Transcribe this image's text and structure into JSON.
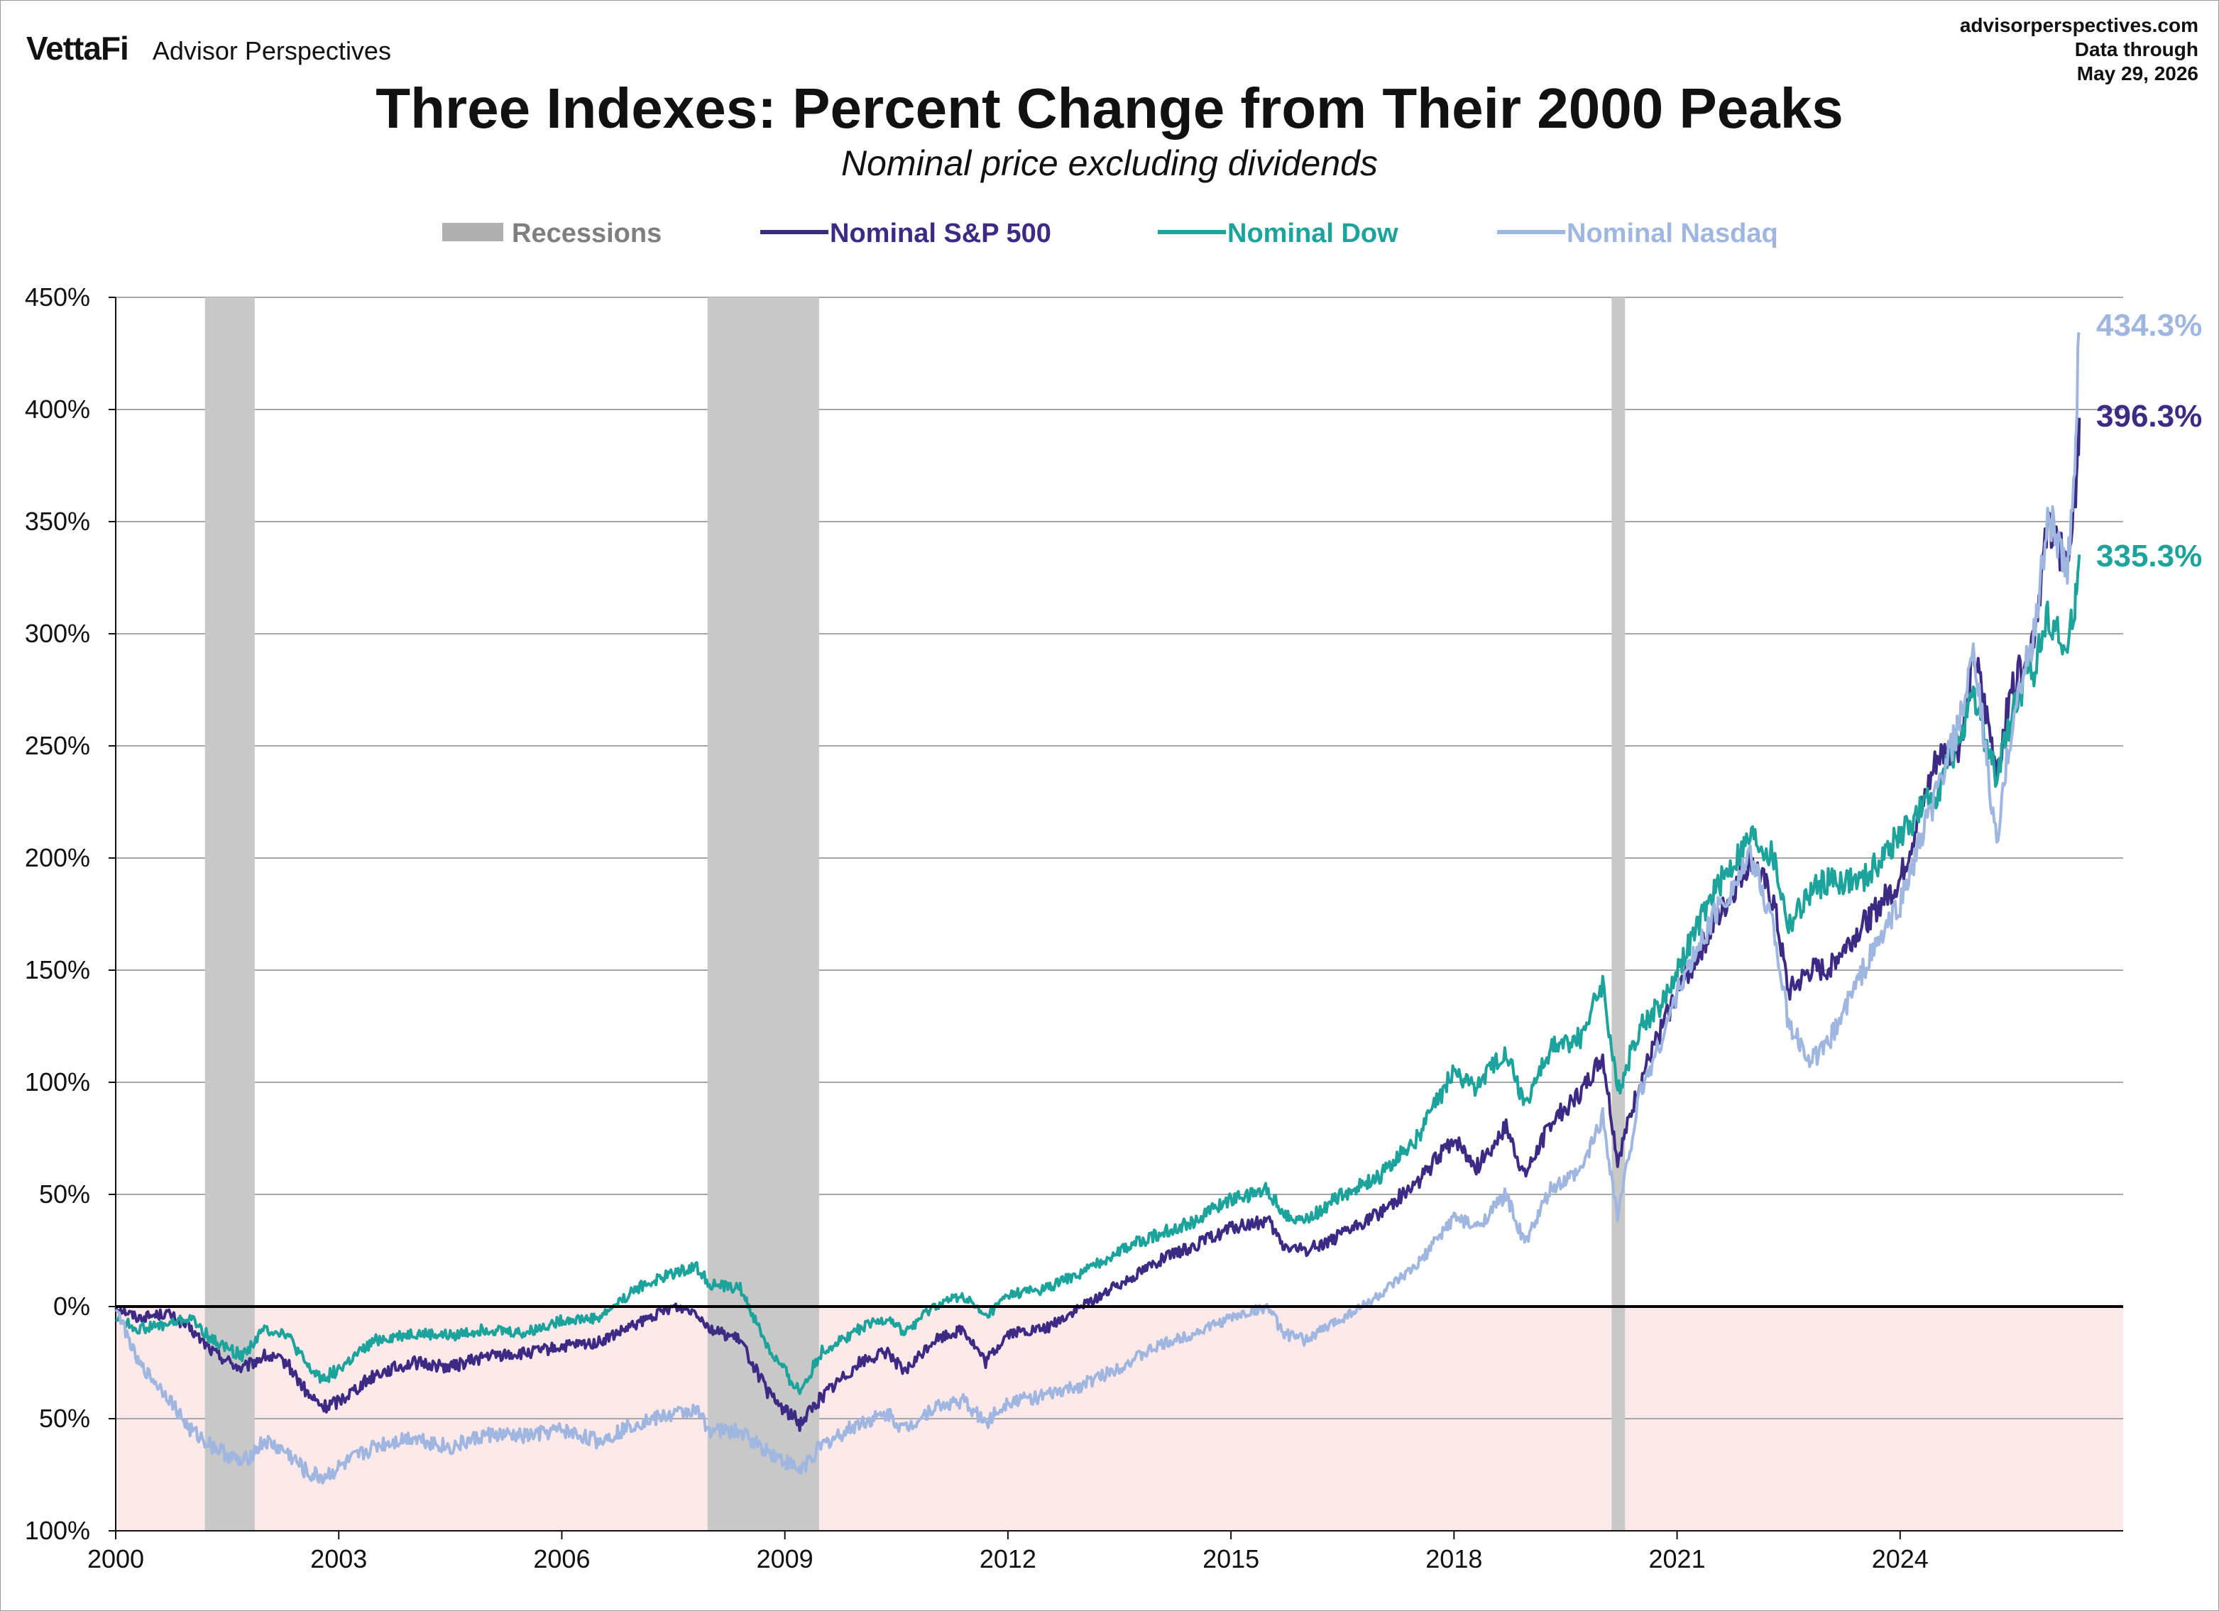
{
  "header": {
    "brand_logo": "VettaFi",
    "brand_name": "Advisor Perspectives",
    "source_site": "advisorperspectives.com",
    "source_note": "Data through",
    "source_date": "May 29, 2026"
  },
  "chart_data": {
    "type": "line",
    "title": "Three Indexes: Percent Change from Their 2000 Peaks",
    "subtitle": "Nominal price excluding dividends",
    "xlabel": "",
    "ylabel": "",
    "xlim": [
      2000.0,
      2027.0
    ],
    "ylim": [
      -100,
      450
    ],
    "x_ticks": [
      2000,
      2003,
      2006,
      2009,
      2012,
      2015,
      2018,
      2021,
      2024
    ],
    "x_tick_labels": [
      "2000",
      "2003",
      "2006",
      "2009",
      "2012",
      "2015",
      "2018",
      "2021",
      "2024"
    ],
    "y_ticks": [
      -100,
      -50,
      0,
      50,
      100,
      150,
      200,
      250,
      300,
      350,
      400,
      450
    ],
    "y_tick_labels": [
      "100%",
      "50%",
      "0%",
      "50%",
      "100%",
      "150%",
      "200%",
      "250%",
      "300%",
      "350%",
      "400%",
      "450%"
    ],
    "negative_tick_color": "#e8151b",
    "grid": true,
    "negative_region_color": "#fde9ea",
    "legend_position": "top",
    "recession_periods": [
      [
        2001.2,
        2001.87
      ],
      [
        2007.96,
        2009.46
      ],
      [
        2020.12,
        2020.3
      ]
    ],
    "recession_color": "#c8c8c8",
    "legend": [
      {
        "label": "Recessions",
        "color": "#b0b0b0",
        "kind": "band"
      },
      {
        "label": "Nominal S&P 500",
        "color": "#3d2a85",
        "kind": "line"
      },
      {
        "label": "Nominal Dow",
        "color": "#1ba39c",
        "kind": "line"
      },
      {
        "label": "Nominal Nasdaq",
        "color": "#9fb6e0",
        "kind": "line"
      }
    ],
    "series": [
      {
        "name": "Nominal S&P 500",
        "color": "#3d2a85",
        "end_label": "396.3%",
        "points": [
          [
            2000.0,
            0
          ],
          [
            2000.3,
            -5
          ],
          [
            2000.7,
            -3
          ],
          [
            2001.0,
            -10
          ],
          [
            2001.3,
            -20
          ],
          [
            2001.7,
            -28
          ],
          [
            2002.0,
            -22
          ],
          [
            2002.3,
            -25
          ],
          [
            2002.6,
            -40
          ],
          [
            2002.8,
            -45
          ],
          [
            2003.0,
            -42
          ],
          [
            2003.5,
            -30
          ],
          [
            2004.0,
            -25
          ],
          [
            2004.5,
            -27
          ],
          [
            2005.0,
            -22
          ],
          [
            2005.5,
            -21
          ],
          [
            2006.0,
            -18
          ],
          [
            2006.5,
            -16
          ],
          [
            2007.0,
            -8
          ],
          [
            2007.5,
            0
          ],
          [
            2007.8,
            -2
          ],
          [
            2008.0,
            -10
          ],
          [
            2008.4,
            -15
          ],
          [
            2008.8,
            -40
          ],
          [
            2009.2,
            -52
          ],
          [
            2009.5,
            -40
          ],
          [
            2010.0,
            -25
          ],
          [
            2010.4,
            -20
          ],
          [
            2010.6,
            -30
          ],
          [
            2011.0,
            -15
          ],
          [
            2011.4,
            -10
          ],
          [
            2011.7,
            -25
          ],
          [
            2012.0,
            -12
          ],
          [
            2012.5,
            -10
          ],
          [
            2013.0,
            0
          ],
          [
            2013.5,
            10
          ],
          [
            2014.0,
            20
          ],
          [
            2014.5,
            27
          ],
          [
            2015.0,
            35
          ],
          [
            2015.5,
            38
          ],
          [
            2015.7,
            27
          ],
          [
            2016.0,
            25
          ],
          [
            2016.5,
            32
          ],
          [
            2017.0,
            42
          ],
          [
            2017.5,
            55
          ],
          [
            2018.0,
            75
          ],
          [
            2018.3,
            62
          ],
          [
            2018.7,
            80
          ],
          [
            2018.95,
            58
          ],
          [
            2019.3,
            82
          ],
          [
            2019.7,
            95
          ],
          [
            2020.0,
            112
          ],
          [
            2020.2,
            65
          ],
          [
            2020.5,
            100
          ],
          [
            2020.8,
            125
          ],
          [
            2021.0,
            140
          ],
          [
            2021.5,
            170
          ],
          [
            2022.0,
            200
          ],
          [
            2022.3,
            180
          ],
          [
            2022.5,
            140
          ],
          [
            2022.8,
            150
          ],
          [
            2023.0,
            150
          ],
          [
            2023.5,
            170
          ],
          [
            2024.0,
            190
          ],
          [
            2024.5,
            245
          ],
          [
            2024.8,
            250
          ],
          [
            2025.0,
            290
          ],
          [
            2025.3,
            240
          ],
          [
            2025.5,
            275
          ],
          [
            2025.8,
            300
          ],
          [
            2026.0,
            350
          ],
          [
            2026.25,
            330
          ],
          [
            2026.35,
            360
          ],
          [
            2026.41,
            396.3
          ]
        ]
      },
      {
        "name": "Nominal Dow",
        "color": "#1ba39c",
        "end_label": "335.3%",
        "points": [
          [
            2000.0,
            -5
          ],
          [
            2000.3,
            -10
          ],
          [
            2000.7,
            -8
          ],
          [
            2001.0,
            -5
          ],
          [
            2001.3,
            -15
          ],
          [
            2001.7,
            -22
          ],
          [
            2002.0,
            -10
          ],
          [
            2002.3,
            -12
          ],
          [
            2002.6,
            -28
          ],
          [
            2002.8,
            -32
          ],
          [
            2003.0,
            -28
          ],
          [
            2003.5,
            -15
          ],
          [
            2004.0,
            -12
          ],
          [
            2004.5,
            -13
          ],
          [
            2005.0,
            -10
          ],
          [
            2005.5,
            -12
          ],
          [
            2006.0,
            -6
          ],
          [
            2006.5,
            -5
          ],
          [
            2007.0,
            8
          ],
          [
            2007.5,
            15
          ],
          [
            2007.8,
            18
          ],
          [
            2008.0,
            10
          ],
          [
            2008.4,
            8
          ],
          [
            2008.8,
            -20
          ],
          [
            2009.2,
            -38
          ],
          [
            2009.5,
            -20
          ],
          [
            2010.0,
            -10
          ],
          [
            2010.4,
            -5
          ],
          [
            2010.6,
            -12
          ],
          [
            2011.0,
            0
          ],
          [
            2011.4,
            5
          ],
          [
            2011.7,
            -5
          ],
          [
            2012.0,
            5
          ],
          [
            2012.5,
            8
          ],
          [
            2013.0,
            15
          ],
          [
            2013.5,
            25
          ],
          [
            2014.0,
            32
          ],
          [
            2014.5,
            38
          ],
          [
            2015.0,
            48
          ],
          [
            2015.5,
            52
          ],
          [
            2015.7,
            42
          ],
          [
            2016.0,
            38
          ],
          [
            2016.5,
            50
          ],
          [
            2017.0,
            58
          ],
          [
            2017.5,
            75
          ],
          [
            2018.0,
            105
          ],
          [
            2018.3,
            98
          ],
          [
            2018.7,
            115
          ],
          [
            2018.95,
            90
          ],
          [
            2019.3,
            115
          ],
          [
            2019.7,
            120
          ],
          [
            2020.0,
            145
          ],
          [
            2020.2,
            95
          ],
          [
            2020.5,
            125
          ],
          [
            2020.8,
            135
          ],
          [
            2021.0,
            150
          ],
          [
            2021.5,
            185
          ],
          [
            2022.0,
            210
          ],
          [
            2022.3,
            200
          ],
          [
            2022.5,
            170
          ],
          [
            2022.8,
            185
          ],
          [
            2023.0,
            190
          ],
          [
            2023.5,
            190
          ],
          [
            2024.0,
            210
          ],
          [
            2024.5,
            230
          ],
          [
            2024.8,
            255
          ],
          [
            2025.0,
            270
          ],
          [
            2025.3,
            235
          ],
          [
            2025.5,
            265
          ],
          [
            2025.8,
            285
          ],
          [
            2026.0,
            310
          ],
          [
            2026.25,
            290
          ],
          [
            2026.35,
            315
          ],
          [
            2026.41,
            335.3
          ]
        ]
      },
      {
        "name": "Nominal Nasdaq",
        "color": "#9fb6e0",
        "end_label": "434.3%",
        "points": [
          [
            2000.0,
            0
          ],
          [
            2000.3,
            -25
          ],
          [
            2000.7,
            -40
          ],
          [
            2001.0,
            -55
          ],
          [
            2001.3,
            -62
          ],
          [
            2001.7,
            -70
          ],
          [
            2002.0,
            -60
          ],
          [
            2002.3,
            -65
          ],
          [
            2002.6,
            -75
          ],
          [
            2002.8,
            -76
          ],
          [
            2003.0,
            -72
          ],
          [
            2003.5,
            -62
          ],
          [
            2004.0,
            -58
          ],
          [
            2004.5,
            -63
          ],
          [
            2005.0,
            -57
          ],
          [
            2005.5,
            -58
          ],
          [
            2006.0,
            -55
          ],
          [
            2006.5,
            -60
          ],
          [
            2007.0,
            -52
          ],
          [
            2007.5,
            -48
          ],
          [
            2007.8,
            -46
          ],
          [
            2008.0,
            -55
          ],
          [
            2008.4,
            -56
          ],
          [
            2008.8,
            -65
          ],
          [
            2009.2,
            -73
          ],
          [
            2009.5,
            -62
          ],
          [
            2010.0,
            -52
          ],
          [
            2010.4,
            -48
          ],
          [
            2010.6,
            -55
          ],
          [
            2011.0,
            -45
          ],
          [
            2011.4,
            -42
          ],
          [
            2011.7,
            -52
          ],
          [
            2012.0,
            -42
          ],
          [
            2012.5,
            -40
          ],
          [
            2013.0,
            -35
          ],
          [
            2013.5,
            -27
          ],
          [
            2014.0,
            -18
          ],
          [
            2014.5,
            -12
          ],
          [
            2015.0,
            -5
          ],
          [
            2015.5,
            0
          ],
          [
            2015.7,
            -12
          ],
          [
            2016.0,
            -15
          ],
          [
            2016.5,
            -5
          ],
          [
            2017.0,
            5
          ],
          [
            2017.5,
            18
          ],
          [
            2018.0,
            40
          ],
          [
            2018.3,
            35
          ],
          [
            2018.7,
            50
          ],
          [
            2018.95,
            28
          ],
          [
            2019.3,
            52
          ],
          [
            2019.7,
            60
          ],
          [
            2020.0,
            85
          ],
          [
            2020.2,
            40
          ],
          [
            2020.5,
            95
          ],
          [
            2020.8,
            120
          ],
          [
            2021.0,
            140
          ],
          [
            2021.5,
            175
          ],
          [
            2022.0,
            200
          ],
          [
            2022.3,
            170
          ],
          [
            2022.5,
            125
          ],
          [
            2022.8,
            110
          ],
          [
            2023.0,
            115
          ],
          [
            2023.5,
            150
          ],
          [
            2024.0,
            180
          ],
          [
            2024.5,
            230
          ],
          [
            2024.8,
            260
          ],
          [
            2025.0,
            290
          ],
          [
            2025.3,
            205
          ],
          [
            2025.5,
            260
          ],
          [
            2025.8,
            300
          ],
          [
            2026.0,
            355
          ],
          [
            2026.25,
            325
          ],
          [
            2026.35,
            380
          ],
          [
            2026.41,
            434.3
          ]
        ]
      }
    ]
  }
}
